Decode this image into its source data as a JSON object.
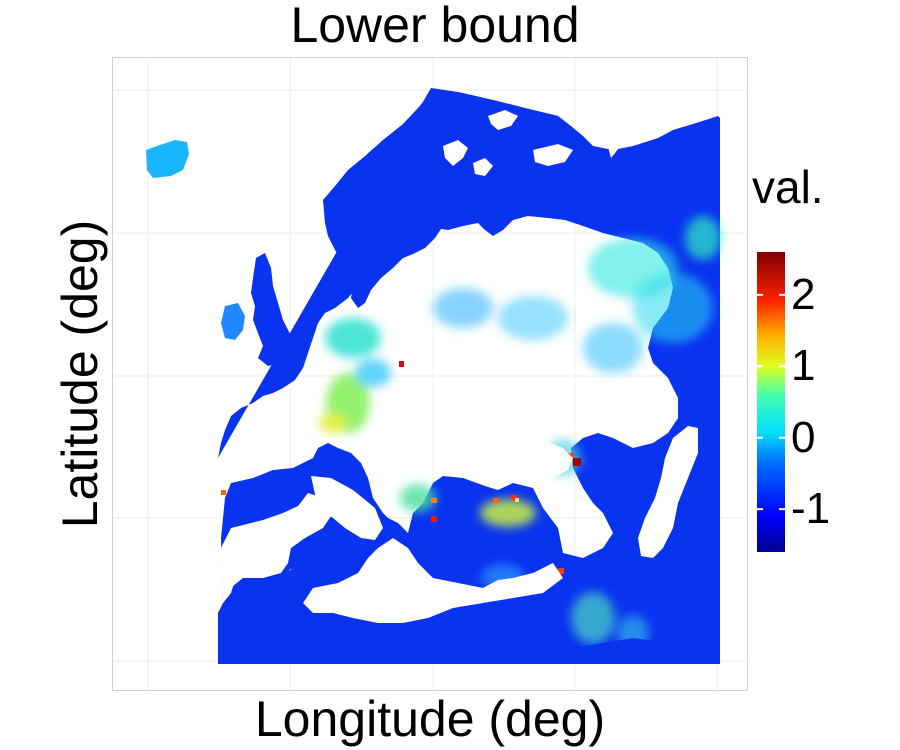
{
  "title": "Lower bound",
  "xlabel": "Longitude (deg)",
  "ylabel": "Latitude (deg)",
  "legend": {
    "title": "val.",
    "ticks": [
      {
        "label": "2",
        "value": 2
      },
      {
        "label": "1",
        "value": 1
      },
      {
        "label": "0",
        "value": 0
      },
      {
        "label": "-1",
        "value": -1
      }
    ],
    "range": [
      -1.6,
      2.6
    ]
  },
  "colors": {
    "ocean": "#ffffff",
    "land_base": "#0a33f0",
    "panel_border": "#d0d0d0"
  },
  "map_type": "gridded heatmap of Europe",
  "hotspot_values": {
    "northeast_lowlands": -0.1,
    "south_france": 0.6,
    "balkans_coast": 1.9,
    "black_sea_coast": 2.4,
    "turkey_coast": 2.0,
    "iberia": -1.0,
    "iceland": -0.3
  }
}
